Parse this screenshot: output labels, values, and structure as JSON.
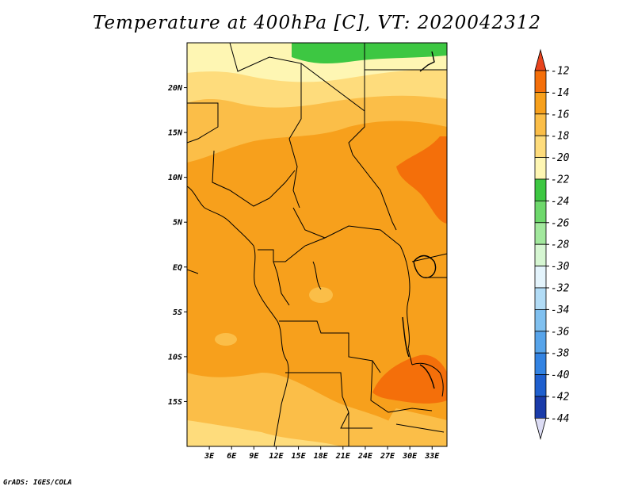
{
  "title": "Temperature at 400hPa [C], VT: 2020042312",
  "credit": "GrADS: IGES/COLA",
  "map": {
    "lat_labels": [
      "20N",
      "15N",
      "10N",
      "5N",
      "EQ",
      "5S",
      "10S",
      "15S"
    ],
    "lat_values": [
      20,
      15,
      10,
      5,
      0,
      -5,
      -10,
      -15
    ],
    "lon_labels": [
      "3E",
      "6E",
      "9E",
      "12E",
      "15E",
      "18E",
      "21E",
      "24E",
      "27E",
      "30E",
      "33E"
    ],
    "lon_values": [
      3,
      6,
      9,
      12,
      15,
      18,
      21,
      24,
      27,
      30,
      33
    ],
    "lon_range": [
      0,
      35
    ],
    "lat_range": [
      -20,
      25
    ]
  },
  "colorbar": {
    "levels": [
      "-12",
      "-14",
      "-16",
      "-18",
      "-20",
      "-22",
      "-24",
      "-26",
      "-28",
      "-30",
      "-32",
      "-34",
      "-36",
      "-38",
      "-40",
      "-42",
      "-44"
    ],
    "colors": {
      "above_-12": "#e8441e",
      "-14_-12": "#f46f0a",
      "-16_-14": "#f7a01c",
      "-18_-16": "#fbbe48",
      "-20_-18": "#fedc7c",
      "-22_-20": "#fef6b3",
      "-24_-22": "#3dc742",
      "-26_-24": "#6ed86c",
      "-28_-26": "#a2e89d",
      "-30_-28": "#d6f6d2",
      "-32_-30": "#e4f4fc",
      "-34_-32": "#b2dcf6",
      "-36_-34": "#80c0ef",
      "-38_-36": "#57a4ea",
      "-40_-38": "#3383e2",
      "-42_-40": "#1f5fce",
      "-44_-42": "#1a3ba9",
      "below_-44": "#12107a",
      "bottom_triangle": "#dcdcf4"
    }
  }
}
